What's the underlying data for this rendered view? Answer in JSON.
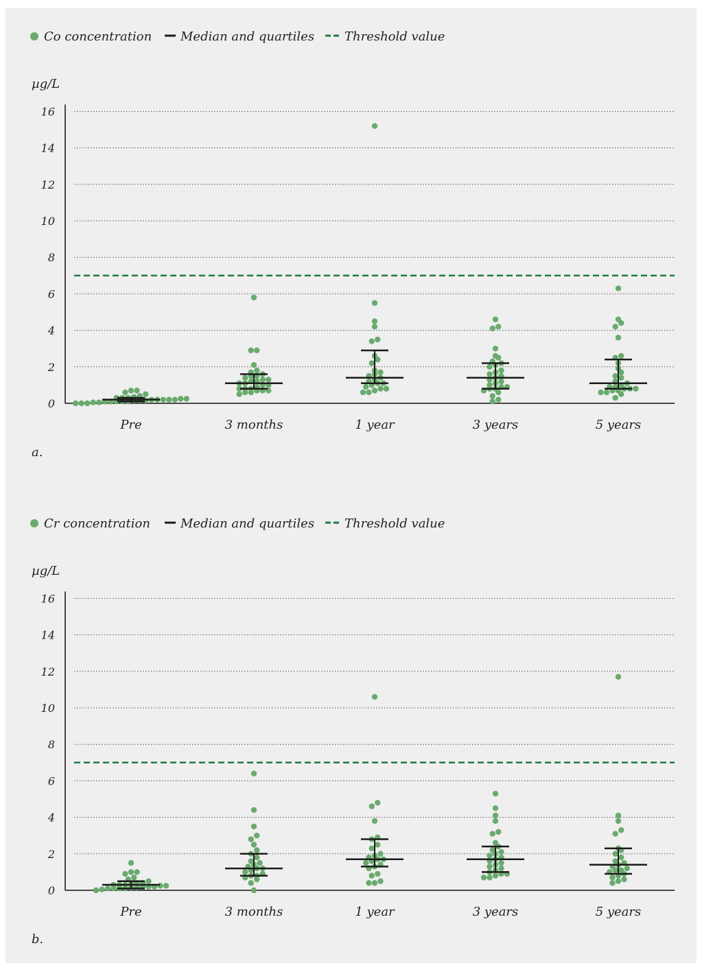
{
  "colors": {
    "point": "#6aaa6e",
    "median": "#1a1a1a",
    "threshold": "#1e7a45",
    "grid": "#555555",
    "background": "#efefef"
  },
  "chart_data": [
    {
      "type": "scatter",
      "panel_label": "a.",
      "unit": "µg/L",
      "legend": {
        "points": "Co concentration",
        "median": "Median and quartiles",
        "threshold": "Threshold value"
      },
      "ylim": [
        0,
        16
      ],
      "yticks": [
        "0",
        "2",
        "4",
        "6",
        "8",
        "10",
        "12",
        "14",
        "16"
      ],
      "grid": true,
      "threshold": 7,
      "categories": [
        "Pre",
        "3 months",
        "1 year",
        "3 years",
        "5 years"
      ],
      "series": [
        {
          "category": "Pre",
          "median": 0.2,
          "q1": 0.1,
          "q3": 0.3,
          "values": [
            0.0,
            0.0,
            0.0,
            0.05,
            0.05,
            0.1,
            0.1,
            0.1,
            0.1,
            0.1,
            0.15,
            0.15,
            0.15,
            0.2,
            0.2,
            0.2,
            0.2,
            0.2,
            0.25,
            0.25,
            0.3,
            0.3,
            0.3,
            0.35,
            0.4,
            0.5,
            0.6,
            0.7,
            0.7
          ]
        },
        {
          "category": "3 months",
          "median": 1.1,
          "q1": 0.8,
          "q3": 1.6,
          "values": [
            0.5,
            0.6,
            0.6,
            0.7,
            0.7,
            0.7,
            0.8,
            0.8,
            0.8,
            0.9,
            1.0,
            1.0,
            1.1,
            1.1,
            1.2,
            1.2,
            1.3,
            1.3,
            1.4,
            1.5,
            1.5,
            1.6,
            1.7,
            1.8,
            2.1,
            2.9,
            2.9,
            5.8
          ]
        },
        {
          "category": "1 year",
          "median": 1.4,
          "q1": 1.1,
          "q3": 2.9,
          "values": [
            0.6,
            0.6,
            0.7,
            0.8,
            0.8,
            0.9,
            1.0,
            1.1,
            1.1,
            1.2,
            1.3,
            1.4,
            1.5,
            1.6,
            1.7,
            1.8,
            2.2,
            2.4,
            2.6,
            3.4,
            3.5,
            4.2,
            4.5,
            5.5,
            15.2
          ]
        },
        {
          "category": "3 years",
          "median": 1.4,
          "q1": 0.8,
          "q3": 2.2,
          "values": [
            0.1,
            0.2,
            0.4,
            0.6,
            0.7,
            0.8,
            0.8,
            0.9,
            0.9,
            1.0,
            1.1,
            1.2,
            1.3,
            1.4,
            1.5,
            1.6,
            1.7,
            1.8,
            2.0,
            2.1,
            2.2,
            2.3,
            2.5,
            2.6,
            3.0,
            4.1,
            4.2,
            4.6
          ]
        },
        {
          "category": "5 years",
          "median": 1.1,
          "q1": 0.8,
          "q3": 2.4,
          "values": [
            0.3,
            0.5,
            0.6,
            0.6,
            0.7,
            0.7,
            0.8,
            0.8,
            0.8,
            0.9,
            0.9,
            1.0,
            1.1,
            1.2,
            1.4,
            1.5,
            1.7,
            1.9,
            2.2,
            2.5,
            2.6,
            3.6,
            4.2,
            4.4,
            4.6,
            6.3
          ]
        }
      ]
    },
    {
      "type": "scatter",
      "panel_label": "b.",
      "unit": "µg/L",
      "legend": {
        "points": "Cr concentration",
        "median": "Median and quartiles",
        "threshold": "Threshold value"
      },
      "ylim": [
        0,
        16
      ],
      "yticks": [
        "0",
        "2",
        "4",
        "6",
        "8",
        "10",
        "12",
        "14",
        "16"
      ],
      "grid": true,
      "threshold": 7,
      "categories": [
        "Pre",
        "3 months",
        "1 year",
        "3 years",
        "5 years"
      ],
      "series": [
        {
          "category": "Pre",
          "median": 0.3,
          "q1": 0.1,
          "q3": 0.5,
          "values": [
            0.0,
            0.05,
            0.1,
            0.1,
            0.1,
            0.1,
            0.15,
            0.15,
            0.2,
            0.2,
            0.2,
            0.25,
            0.25,
            0.3,
            0.3,
            0.3,
            0.35,
            0.4,
            0.4,
            0.5,
            0.6,
            0.7,
            0.9,
            1.0,
            1.0,
            1.5
          ]
        },
        {
          "category": "3 months",
          "median": 1.2,
          "q1": 0.8,
          "q3": 2.0,
          "values": [
            0.0,
            0.4,
            0.6,
            0.7,
            0.8,
            0.8,
            0.9,
            1.0,
            1.1,
            1.2,
            1.2,
            1.3,
            1.4,
            1.5,
            1.6,
            1.8,
            2.0,
            2.2,
            2.5,
            2.8,
            3.0,
            3.5,
            4.4,
            6.4
          ]
        },
        {
          "category": "1 year",
          "median": 1.7,
          "q1": 1.3,
          "q3": 2.8,
          "values": [
            0.4,
            0.4,
            0.5,
            0.8,
            0.9,
            1.2,
            1.3,
            1.4,
            1.5,
            1.6,
            1.7,
            1.7,
            1.8,
            1.9,
            2.0,
            2.3,
            2.5,
            2.8,
            2.9,
            3.8,
            4.6,
            4.8,
            10.6
          ]
        },
        {
          "category": "3 years",
          "median": 1.7,
          "q1": 1.0,
          "q3": 2.4,
          "values": [
            0.7,
            0.7,
            0.8,
            0.9,
            0.9,
            1.0,
            1.1,
            1.2,
            1.3,
            1.4,
            1.5,
            1.6,
            1.7,
            1.8,
            1.9,
            2.0,
            2.1,
            2.2,
            2.4,
            2.6,
            3.1,
            3.2,
            3.8,
            4.1,
            4.5,
            5.3
          ]
        },
        {
          "category": "5 years",
          "median": 1.4,
          "q1": 0.9,
          "q3": 2.3,
          "values": [
            0.4,
            0.5,
            0.6,
            0.7,
            0.8,
            0.9,
            1.0,
            1.1,
            1.1,
            1.2,
            1.3,
            1.4,
            1.5,
            1.6,
            1.8,
            2.0,
            2.2,
            2.3,
            3.1,
            3.3,
            3.8,
            4.1,
            11.7
          ]
        }
      ]
    }
  ]
}
